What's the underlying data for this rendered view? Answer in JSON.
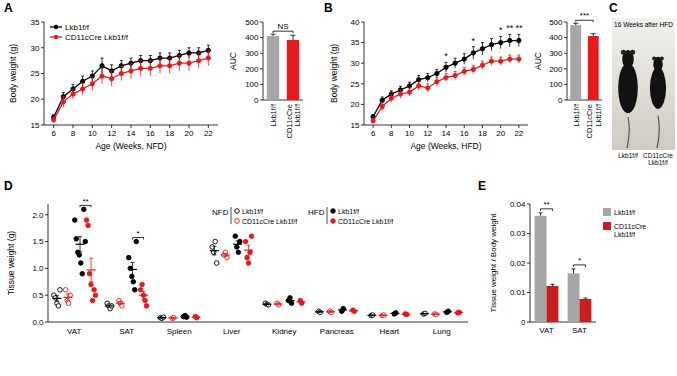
{
  "chart_data": [
    {
      "type": "line",
      "panel": "A",
      "x_label": "Age (Weeks, NFD)",
      "y_label": "Body weight (g)",
      "x": [
        6,
        7,
        8,
        9,
        10,
        11,
        12,
        13,
        14,
        15,
        16,
        17,
        18,
        19,
        20,
        21,
        22
      ],
      "xlim": [
        5,
        23
      ],
      "xticks": [
        6,
        8,
        10,
        12,
        14,
        16,
        18,
        20,
        22
      ],
      "ylim": [
        15,
        35
      ],
      "yticks": [
        15,
        20,
        25,
        30,
        35
      ],
      "legend": "upper left",
      "series": [
        {
          "name": "Lkb1f/f",
          "color": "#000000",
          "marker": "circle",
          "values": [
            16.5,
            20.5,
            22,
            23.5,
            24.5,
            26.5,
            25.5,
            26.5,
            27,
            27.5,
            27.5,
            28,
            28,
            28.5,
            29,
            29,
            29.5
          ],
          "errors": [
            0.5,
            0.8,
            0.9,
            1,
            1,
            1.5,
            1.2,
            1,
            1,
            1,
            1,
            1,
            1,
            1,
            1,
            1,
            1
          ]
        },
        {
          "name": "CD11cCre Lkb1f/f",
          "color": "#e41a1c",
          "marker": "circle",
          "values": [
            16,
            19.5,
            21,
            22,
            23,
            24.5,
            24,
            25,
            25.5,
            26,
            26,
            26.5,
            26.5,
            27,
            27,
            27.5,
            28
          ],
          "errors": [
            0.5,
            1,
            1,
            1.2,
            1.3,
            1.5,
            1.5,
            1.4,
            1.4,
            1.5,
            1.5,
            1.5,
            1.5,
            1.5,
            1.5,
            1.5,
            1.5
          ]
        }
      ]
    },
    {
      "type": "bar",
      "y_label": "AUC",
      "categories": [
        "Lkb1f/f",
        "CD11cCre Lkb1f/f"
      ],
      "values": [
        410,
        385
      ],
      "errors": [
        12,
        30
      ],
      "colors": [
        "#a6a6a6",
        "#e41a1c"
      ],
      "ylim": [
        0,
        500
      ],
      "yticks": [
        0,
        100,
        200,
        300,
        400,
        500
      ],
      "annotations": [
        {
          "text": "NS"
        }
      ]
    },
    {
      "type": "line",
      "panel": "B",
      "x_label": "Age (Weeks, HFD)",
      "y_label": "Body weight (g)",
      "x": [
        6,
        7,
        8,
        9,
        10,
        11,
        12,
        13,
        14,
        15,
        16,
        17,
        18,
        19,
        20,
        21,
        22
      ],
      "xlim": [
        5,
        23
      ],
      "xticks": [
        6,
        8,
        10,
        12,
        14,
        16,
        18,
        20,
        22
      ],
      "ylim": [
        15,
        40
      ],
      "yticks": [
        15,
        20,
        25,
        30,
        35,
        40
      ],
      "series": [
        {
          "name": "Lkb1f/f",
          "color": "#000000",
          "marker": "circle",
          "values": [
            17,
            21,
            22.5,
            23.5,
            24.5,
            26,
            26.5,
            27.5,
            29,
            30,
            31,
            32.5,
            33.5,
            34.5,
            35,
            35.5,
            35.5
          ],
          "errors": [
            0.5,
            0.8,
            0.8,
            0.9,
            0.9,
            1,
            1,
            1,
            1.2,
            1.2,
            1.3,
            1.5,
            1.5,
            1.5,
            1.5,
            1.5,
            1.5
          ]
        },
        {
          "name": "CD11cCre Lkb1f/f",
          "color": "#e41a1c",
          "marker": "circle",
          "values": [
            16,
            19.5,
            21.5,
            22.5,
            23,
            24.5,
            24,
            25.5,
            26.5,
            27,
            28,
            28.5,
            29.5,
            30.5,
            30.5,
            31,
            31
          ],
          "errors": [
            0.5,
            1,
            1,
            1,
            1,
            1,
            1,
            1,
            1,
            1,
            1,
            1,
            1,
            1,
            1,
            1,
            1
          ]
        }
      ],
      "annotations": [
        {
          "x": 14,
          "text": "*"
        },
        {
          "x": 17,
          "text": "*"
        },
        {
          "x": 20,
          "text": "*"
        },
        {
          "x": 21,
          "text": "**"
        },
        {
          "x": 22,
          "text": "**"
        }
      ]
    },
    {
      "type": "bar",
      "y_label": "AUC",
      "categories": [
        "Lkb1f/f",
        "CD11cCre Lkb1f/f"
      ],
      "values": [
        480,
        410
      ],
      "errors": [
        12,
        15
      ],
      "colors": [
        "#a6a6a6",
        "#e41a1c"
      ],
      "ylim": [
        0,
        500
      ],
      "yticks": [
        0,
        100,
        200,
        300,
        400,
        500
      ],
      "annotations": [
        {
          "text": "***"
        }
      ]
    },
    {
      "type": "image",
      "panel": "C",
      "title": "16 Weeks after HFD",
      "labels": [
        "Lkb1f/f",
        "CD11cCre Lkb1f/f"
      ]
    },
    {
      "type": "scatter",
      "panel": "D",
      "y_label": "Tissue weight (g)",
      "categories": [
        "VAT",
        "SAT",
        "Spleen",
        "Liver",
        "Kidney",
        "Pancreas",
        "Heart",
        "Lung"
      ],
      "ylim": [
        0,
        2.2
      ],
      "yticks": [
        {
          "value": 0,
          "label": "0.0"
        },
        0.5,
        {
          "value": 1,
          "label": "1.0"
        },
        1.5,
        {
          "value": 2,
          "label": "2.0"
        }
      ],
      "legend": "upper center",
      "legend_groups": [
        "NFD",
        "HFD"
      ],
      "series": [
        {
          "name": "Lkb1f/f",
          "color": "#000000",
          "marker": "circle-open",
          "values": [
            [
              0.5,
              0.45,
              0.35,
              0.3,
              0.6
            ],
            [
              0.35,
              0.3,
              0.25,
              0.3
            ],
            [
              0.08,
              0.07,
              0.09
            ],
            [
              1.4,
              1.3,
              1.5,
              1.1
            ],
            [
              0.35,
              0.33,
              0.32
            ],
            [
              0.2,
              0.18
            ],
            [
              0.12,
              0.13
            ],
            [
              0.15,
              0.16
            ]
          ],
          "means": [
            0.44,
            0.3,
            0.08,
            1.33,
            0.33,
            0.19,
            0.125,
            0.155
          ],
          "errors": [
            0.05,
            0.02,
            0.01,
            0.08,
            0.01,
            0.01,
            0.005,
            0.005
          ]
        },
        {
          "name": "CD11cCre Lkb1f/f",
          "color": "#e41a1c",
          "marker": "circle-open",
          "values": [
            [
              0.6,
              0.4,
              0.35,
              0.5
            ],
            [
              0.4,
              0.35,
              0.3
            ],
            [
              0.07,
              0.08
            ],
            [
              1.25,
              1.3,
              1.2
            ],
            [
              0.35,
              0.32
            ],
            [
              0.2,
              0.18
            ],
            [
              0.12,
              0.13
            ],
            [
              0.15,
              0.14
            ]
          ],
          "means": [
            0.46,
            0.35,
            0.075,
            1.25,
            0.335,
            0.19,
            0.125,
            0.145
          ],
          "errors": [
            0.06,
            0.03,
            0.005,
            0.03,
            0.015,
            0.01,
            0.005,
            0.005
          ]
        },
        {
          "name": "Lkb1f/f",
          "color": "#000000",
          "marker": "circle",
          "values": [
            [
              1.9,
              1.55,
              1.3,
              1.25,
              1.1,
              0.9,
              2.1,
              1.5
            ],
            [
              1.2,
              1.0,
              0.85,
              0.75,
              0.6,
              1.5
            ],
            [
              0.1,
              0.12,
              0.09
            ],
            [
              1.6,
              1.4,
              1.3,
              1.5
            ],
            [
              0.4,
              0.45,
              0.35
            ],
            [
              0.2,
              0.25
            ],
            [
              0.15,
              0.17
            ],
            [
              0.18,
              0.2
            ]
          ],
          "means": [
            1.45,
            0.98,
            0.103,
            1.45,
            0.4,
            0.225,
            0.16,
            0.19
          ],
          "errors": [
            0.14,
            0.13,
            0.009,
            0.06,
            0.03,
            0.025,
            0.01,
            0.01
          ]
        },
        {
          "name": "CD11cCre Lkb1f/f",
          "color": "#e41a1c",
          "marker": "circle",
          "values": [
            [
              1.9,
              1.8,
              0.9,
              0.7,
              0.4,
              0.6,
              0.5
            ],
            [
              0.6,
              0.7,
              0.5,
              0.4,
              0.3
            ],
            [
              0.1,
              0.08
            ],
            [
              1.5,
              1.2,
              1.1,
              1.3,
              1.6
            ],
            [
              0.4,
              0.35
            ],
            [
              0.22,
              0.2
            ],
            [
              0.15,
              0.14
            ],
            [
              0.17,
              0.18
            ]
          ],
          "means": [
            0.97,
            0.5,
            0.09,
            1.34,
            0.375,
            0.21,
            0.145,
            0.175
          ],
          "errors": [
            0.22,
            0.07,
            0.01,
            0.09,
            0.025,
            0.01,
            0.005,
            0.005
          ]
        }
      ],
      "annotations": [
        {
          "category": "VAT",
          "text": "**"
        },
        {
          "category": "SAT",
          "text": "*"
        }
      ]
    },
    {
      "type": "bar",
      "panel": "E",
      "y_label": "Tissue weight / Body weight",
      "categories": [
        "VAT",
        "SAT"
      ],
      "ylim": [
        0,
        0.04
      ],
      "yticks": [
        0,
        0.01,
        0.02,
        0.03,
        0.04
      ],
      "legend": "upper right",
      "series": [
        {
          "name": "Lkb1f/f",
          "color": "#a6a6a6",
          "values": [
            0.036,
            0.0165
          ],
          "errors": [
            0.001,
            0.0015
          ]
        },
        {
          "name": "CD11cCre Lkb1f/f",
          "color": "#c81e1e",
          "values": [
            0.0122,
            0.0078
          ],
          "errors": [
            0.0006,
            0.0003
          ]
        }
      ],
      "annotations": [
        {
          "category": "VAT",
          "text": "**"
        },
        {
          "category": "SAT",
          "text": "*"
        }
      ]
    }
  ]
}
